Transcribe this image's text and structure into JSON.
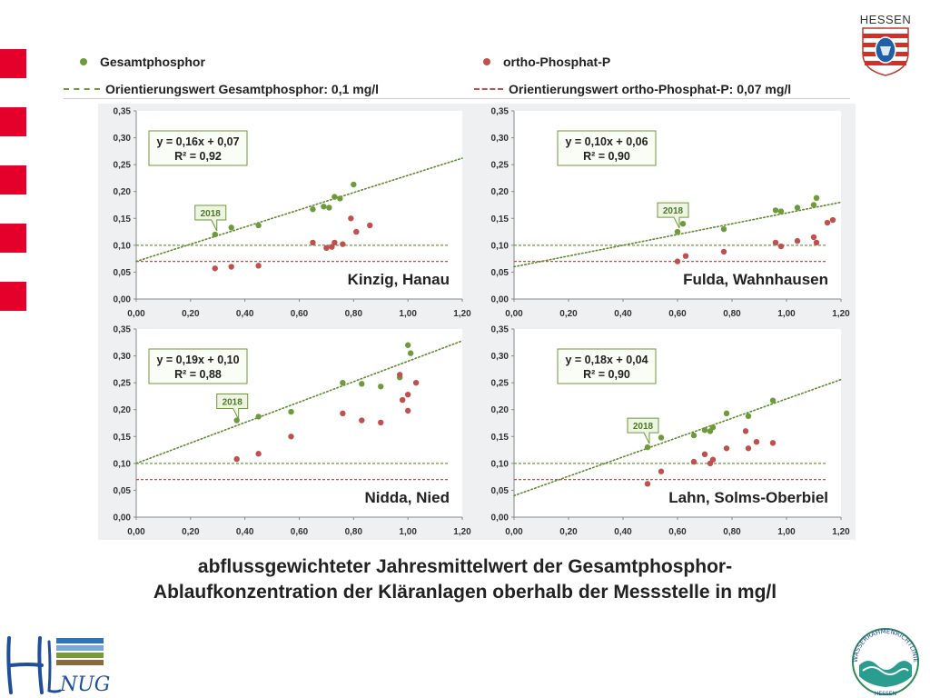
{
  "header": {
    "brand": "HESSEN",
    "legend": {
      "gp_label": "Gesamtphosphor",
      "op_label": "ortho-Phosphat-P",
      "gp_ref_label": "Orientierungswert Gesamtphosphor: 0,1 mg/l",
      "op_ref_label": "Orientierungswert ortho-Phosphat-P: 0,07 mg/l"
    }
  },
  "colors": {
    "green": "#6e9a3a",
    "red": "#c0504d",
    "stripe": "#e4002b",
    "panel": "#ffffff"
  },
  "caption": {
    "line1": "abflussgewichteter Jahresmittelwert der Gesamtphosphor-",
    "line2": "Ablaufkonzentration der Kläranlagen oberhalb der Messstelle  in mg/l"
  },
  "logos": {
    "left_text": "NUG",
    "right_top": "WASSERRAHMENRICHTLINIE",
    "right_bottom": "HESSEN"
  },
  "chart_data": [
    {
      "type": "scatter",
      "title": "Kinzig, Hanau",
      "xlim": [
        0,
        1.2
      ],
      "ylim": [
        0,
        0.35
      ],
      "xticks": [
        "0,00",
        "0,20",
        "0,40",
        "0,60",
        "0,80",
        "1,00",
        "1,20"
      ],
      "yticks": [
        "0,00",
        "0,05",
        "0,10",
        "0,15",
        "0,20",
        "0,25",
        "0,30",
        "0,35"
      ],
      "equation": "y = 0,16x + 0,07",
      "r2": "R² = 0,92",
      "trend": {
        "slope": 0.16,
        "intercept": 0.07,
        "x_end": 1.2
      },
      "ref_gp": 0.1,
      "ref_op": 0.07,
      "ref_x_end": 1.15,
      "annotation": {
        "text": "2018",
        "x": 0.29,
        "y": 0.12
      },
      "series": [
        {
          "name": "Gesamtphosphor",
          "x": [
            0.29,
            0.35,
            0.45,
            0.65,
            0.69,
            0.71,
            0.73,
            0.75,
            0.8
          ],
          "y": [
            0.12,
            0.133,
            0.137,
            0.167,
            0.172,
            0.17,
            0.19,
            0.187,
            0.213
          ]
        },
        {
          "name": "ortho-Phosphat-P",
          "x": [
            0.29,
            0.35,
            0.45,
            0.65,
            0.7,
            0.72,
            0.73,
            0.76,
            0.79,
            0.81,
            0.86
          ],
          "y": [
            0.057,
            0.06,
            0.062,
            0.105,
            0.095,
            0.097,
            0.105,
            0.102,
            0.15,
            0.125,
            0.137
          ]
        }
      ]
    },
    {
      "type": "scatter",
      "title": "Fulda, Wahnhausen",
      "xlim": [
        0,
        1.2
      ],
      "ylim": [
        0,
        0.35
      ],
      "xticks": [
        "0,00",
        "0,20",
        "0,40",
        "0,60",
        "0,80",
        "1,00",
        "1,20"
      ],
      "yticks": [
        "0,00",
        "0,05",
        "0,10",
        "0,15",
        "0,20",
        "0,25",
        "0,30",
        "0,35"
      ],
      "equation": "y = 0,10x + 0,06",
      "r2": "R² = 0,90",
      "trend": {
        "slope": 0.1,
        "intercept": 0.06,
        "x_end": 1.2
      },
      "ref_gp": 0.1,
      "ref_op": 0.07,
      "ref_x_end": 1.15,
      "annotation": {
        "text": "2018",
        "x": 0.6,
        "y": 0.125
      },
      "series": [
        {
          "name": "Gesamtphosphor",
          "x": [
            0.6,
            0.62,
            0.77,
            0.96,
            0.98,
            1.04,
            1.1,
            1.11
          ],
          "y": [
            0.125,
            0.14,
            0.13,
            0.165,
            0.163,
            0.17,
            0.175,
            0.188
          ]
        },
        {
          "name": "ortho-Phosphat-P",
          "x": [
            0.6,
            0.63,
            0.77,
            0.96,
            0.98,
            1.04,
            1.1,
            1.11,
            1.15,
            1.17
          ],
          "y": [
            0.07,
            0.08,
            0.088,
            0.105,
            0.098,
            0.108,
            0.115,
            0.105,
            0.142,
            0.147
          ]
        }
      ]
    },
    {
      "type": "scatter",
      "title": "Nidda, Nied",
      "xlim": [
        0,
        1.2
      ],
      "ylim": [
        0,
        0.35
      ],
      "xticks": [
        "0,00",
        "0,20",
        "0,40",
        "0,60",
        "0,80",
        "1,00",
        "1,20"
      ],
      "yticks": [
        "0,00",
        "0,05",
        "0,10",
        "0,15",
        "0,20",
        "0,25",
        "0,30",
        "0,35"
      ],
      "equation": "y = 0,19x + 0,10",
      "r2": "R² = 0,88",
      "trend": {
        "slope": 0.19,
        "intercept": 0.1,
        "x_end": 1.2
      },
      "ref_gp": 0.1,
      "ref_op": 0.07,
      "ref_x_end": 1.15,
      "annotation": {
        "text": "2018",
        "x": 0.37,
        "y": 0.175
      },
      "series": [
        {
          "name": "Gesamtphosphor",
          "x": [
            0.37,
            0.45,
            0.57,
            0.76,
            0.83,
            0.9,
            0.97,
            1.0,
            1.01
          ],
          "y": [
            0.18,
            0.187,
            0.196,
            0.25,
            0.248,
            0.243,
            0.26,
            0.32,
            0.305
          ]
        },
        {
          "name": "ortho-Phosphat-P",
          "x": [
            0.37,
            0.45,
            0.57,
            0.76,
            0.83,
            0.9,
            0.97,
            0.98,
            1.0,
            1.0,
            1.03
          ],
          "y": [
            0.108,
            0.118,
            0.15,
            0.193,
            0.18,
            0.176,
            0.265,
            0.218,
            0.228,
            0.198,
            0.25
          ]
        }
      ]
    },
    {
      "type": "scatter",
      "title": "Lahn, Solms-Oberbiel",
      "xlim": [
        0,
        1.2
      ],
      "ylim": [
        0,
        0.35
      ],
      "xticks": [
        "0,00",
        "0,20",
        "0,40",
        "0,60",
        "0,80",
        "1,00",
        "1,20"
      ],
      "yticks": [
        "0,00",
        "0,05",
        "0,10",
        "0,15",
        "0,20",
        "0,25",
        "0,30",
        "0,35"
      ],
      "equation": "y = 0,18x + 0,04",
      "r2": "R² = 0,90",
      "trend": {
        "slope": 0.18,
        "intercept": 0.04,
        "x_end": 1.2
      },
      "ref_gp": 0.1,
      "ref_op": 0.07,
      "ref_x_end": 1.15,
      "annotation": {
        "text": "2018",
        "x": 0.49,
        "y": 0.13
      },
      "series": [
        {
          "name": "Gesamtphosphor",
          "x": [
            0.49,
            0.54,
            0.66,
            0.7,
            0.72,
            0.73,
            0.78,
            0.86,
            0.95
          ],
          "y": [
            0.13,
            0.148,
            0.152,
            0.162,
            0.16,
            0.167,
            0.193,
            0.188,
            0.217
          ]
        },
        {
          "name": "ortho-Phosphat-P",
          "x": [
            0.49,
            0.54,
            0.66,
            0.7,
            0.72,
            0.73,
            0.78,
            0.85,
            0.86,
            0.89,
            0.95
          ],
          "y": [
            0.062,
            0.085,
            0.103,
            0.117,
            0.1,
            0.107,
            0.128,
            0.16,
            0.128,
            0.14,
            0.138
          ]
        }
      ]
    }
  ]
}
